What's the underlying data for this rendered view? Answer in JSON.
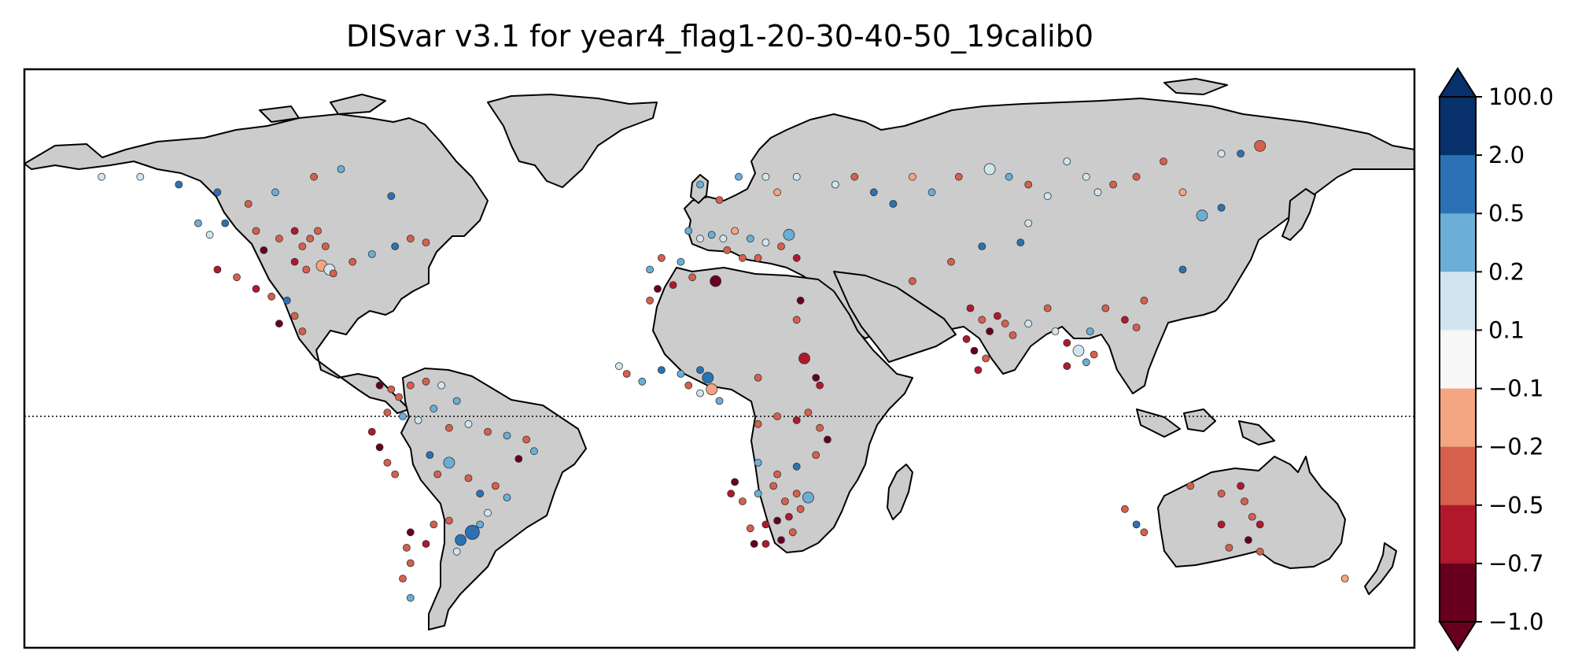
{
  "title": "DISvar v3.1 for year4_flag1-20-30-40-50_19calib0",
  "colorbar": {
    "labels": [
      "100.0",
      "2.0",
      "0.5",
      "0.2",
      "0.1",
      "−0.1",
      "−0.2",
      "−0.5",
      "−0.7",
      "−1.0"
    ],
    "colors": [
      "#67001f",
      "#b2182b",
      "#d6604d",
      "#f4a582",
      "#f7f7f7",
      "#d1e5f0",
      "#6baed6",
      "#2b72b4",
      "#08306b"
    ],
    "extend": "both"
  },
  "map": {
    "land_color": "#cccccc",
    "ocean_color": "#ffffff",
    "equator_line": "dotted",
    "marker_edge_color": "#333333"
  },
  "stations": [
    {
      "lon": -130,
      "lat": 60,
      "v": 0.6,
      "s": 1
    },
    {
      "lon": -140,
      "lat": 62,
      "v": 0.12,
      "s": 1
    },
    {
      "lon": -150,
      "lat": 62,
      "v": 0.12,
      "s": 1
    },
    {
      "lon": -120,
      "lat": 58,
      "v": 1.0,
      "s": 1
    },
    {
      "lon": -112,
      "lat": 55,
      "v": -0.3,
      "s": 1
    },
    {
      "lon": -105,
      "lat": 58,
      "v": 0.4,
      "s": 1
    },
    {
      "lon": -95,
      "lat": 62,
      "v": -0.3,
      "s": 1
    },
    {
      "lon": -88,
      "lat": 64,
      "v": 0.35,
      "s": 1
    },
    {
      "lon": -75,
      "lat": 57,
      "v": 0.5,
      "s": 1
    },
    {
      "lon": -118,
      "lat": 50,
      "v": 0.6,
      "s": 1
    },
    {
      "lon": -110,
      "lat": 48,
      "v": -0.3,
      "s": 1
    },
    {
      "lon": -104,
      "lat": 46,
      "v": -0.3,
      "s": 1
    },
    {
      "lon": -100,
      "lat": 48,
      "v": -0.6,
      "s": 1
    },
    {
      "lon": -98,
      "lat": 44,
      "v": -0.4,
      "s": 1
    },
    {
      "lon": -96,
      "lat": 46,
      "v": -0.3,
      "s": 1
    },
    {
      "lon": -94,
      "lat": 48,
      "v": -0.4,
      "s": 1
    },
    {
      "lon": -92,
      "lat": 44,
      "v": -0.5,
      "s": 1
    },
    {
      "lon": -108,
      "lat": 43,
      "v": -0.8,
      "s": 1
    },
    {
      "lon": -100,
      "lat": 40,
      "v": -0.6,
      "s": 1
    },
    {
      "lon": -97,
      "lat": 38,
      "v": -0.3,
      "s": 1
    },
    {
      "lon": -93,
      "lat": 39,
      "v": -0.15,
      "s": 2
    },
    {
      "lon": -91,
      "lat": 38,
      "v": 0.12,
      "s": 2
    },
    {
      "lon": -90,
      "lat": 37,
      "v": -0.3,
      "s": 1
    },
    {
      "lon": -85,
      "lat": 40,
      "v": -0.3,
      "s": 1
    },
    {
      "lon": -80,
      "lat": 42,
      "v": 0.4,
      "s": 1
    },
    {
      "lon": -74,
      "lat": 44,
      "v": 0.5,
      "s": 1
    },
    {
      "lon": -70,
      "lat": 46,
      "v": -0.4,
      "s": 1
    },
    {
      "lon": -66,
      "lat": 45,
      "v": -0.3,
      "s": 1
    },
    {
      "lon": -120,
      "lat": 38,
      "v": -0.6,
      "s": 1
    },
    {
      "lon": -115,
      "lat": 36,
      "v": -0.3,
      "s": 1
    },
    {
      "lon": -110,
      "lat": 33,
      "v": -0.6,
      "s": 1
    },
    {
      "lon": -106,
      "lat": 31,
      "v": -0.5,
      "s": 1
    },
    {
      "lon": -102,
      "lat": 30,
      "v": 0.6,
      "s": 1
    },
    {
      "lon": -100,
      "lat": 26,
      "v": -0.4,
      "s": 1
    },
    {
      "lon": -104,
      "lat": 24,
      "v": -0.8,
      "s": 1
    },
    {
      "lon": -98,
      "lat": 22,
      "v": -0.3,
      "s": 1
    },
    {
      "lon": -122,
      "lat": 47,
      "v": 0.12,
      "s": 1
    },
    {
      "lon": -125,
      "lat": 50,
      "v": 0.4,
      "s": 1
    },
    {
      "lon": -78,
      "lat": 8,
      "v": -0.8,
      "s": 1
    },
    {
      "lon": -75,
      "lat": 7,
      "v": -0.3,
      "s": 1
    },
    {
      "lon": -73,
      "lat": 5,
      "v": -0.3,
      "s": 1
    },
    {
      "lon": -70,
      "lat": 8,
      "v": -0.5,
      "s": 1
    },
    {
      "lon": -66,
      "lat": 9,
      "v": -0.3,
      "s": 1
    },
    {
      "lon": -62,
      "lat": 8,
      "v": 0.12,
      "s": 1
    },
    {
      "lon": -58,
      "lat": 4,
      "v": 0.3,
      "s": 1
    },
    {
      "lon": -76,
      "lat": 1,
      "v": -0.5,
      "s": 1
    },
    {
      "lon": -72,
      "lat": 0,
      "v": 0.4,
      "s": 1
    },
    {
      "lon": -68,
      "lat": -1,
      "v": 0.12,
      "s": 1
    },
    {
      "lon": -64,
      "lat": 2,
      "v": 0.3,
      "s": 1
    },
    {
      "lon": -60,
      "lat": -3,
      "v": -0.3,
      "s": 1
    },
    {
      "lon": -55,
      "lat": -2,
      "v": 0.12,
      "s": 1
    },
    {
      "lon": -50,
      "lat": -4,
      "v": -0.3,
      "s": 1
    },
    {
      "lon": -45,
      "lat": -5,
      "v": 0.2,
      "s": 1
    },
    {
      "lon": -40,
      "lat": -6,
      "v": -0.3,
      "s": 1
    },
    {
      "lon": -38,
      "lat": -9,
      "v": 0.4,
      "s": 1
    },
    {
      "lon": -42,
      "lat": -11,
      "v": -0.8,
      "s": 1
    },
    {
      "lon": -80,
      "lat": -4,
      "v": -0.6,
      "s": 1
    },
    {
      "lon": -78,
      "lat": -8,
      "v": -0.8,
      "s": 1
    },
    {
      "lon": -76,
      "lat": -12,
      "v": -0.3,
      "s": 1
    },
    {
      "lon": -74,
      "lat": -15,
      "v": -0.5,
      "s": 1
    },
    {
      "lon": -65,
      "lat": -10,
      "v": 0.6,
      "s": 1
    },
    {
      "lon": -60,
      "lat": -12,
      "v": 0.35,
      "s": 2
    },
    {
      "lon": -63,
      "lat": -15,
      "v": -0.3,
      "s": 1
    },
    {
      "lon": -55,
      "lat": -16,
      "v": -0.3,
      "s": 1
    },
    {
      "lon": -52,
      "lat": -20,
      "v": 0.7,
      "s": 1
    },
    {
      "lon": -48,
      "lat": -18,
      "v": -0.5,
      "s": 1
    },
    {
      "lon": -45,
      "lat": -21,
      "v": 0.3,
      "s": 1
    },
    {
      "lon": -50,
      "lat": -25,
      "v": 0.12,
      "s": 1
    },
    {
      "lon": -52,
      "lat": -28,
      "v": 0.4,
      "s": 1
    },
    {
      "lon": -54,
      "lat": -30,
      "v": 1.0,
      "s": 3
    },
    {
      "lon": -57,
      "lat": -32,
      "v": 0.7,
      "s": 2
    },
    {
      "lon": -60,
      "lat": -27,
      "v": -0.5,
      "s": 1
    },
    {
      "lon": -58,
      "lat": -35,
      "v": 0.12,
      "s": 1
    },
    {
      "lon": -64,
      "lat": -28,
      "v": -0.3,
      "s": 1
    },
    {
      "lon": -66,
      "lat": -33,
      "v": -0.6,
      "s": 1
    },
    {
      "lon": -70,
      "lat": -30,
      "v": -0.8,
      "s": 1
    },
    {
      "lon": -71,
      "lat": -34,
      "v": -0.3,
      "s": 1
    },
    {
      "lon": -70,
      "lat": -38,
      "v": -0.5,
      "s": 1
    },
    {
      "lon": -72,
      "lat": -42,
      "v": -0.3,
      "s": 1
    },
    {
      "lon": -70,
      "lat": -47,
      "v": 0.4,
      "s": 1
    },
    {
      "lon": 5,
      "lat": 60,
      "v": 0.4,
      "s": 1
    },
    {
      "lon": 10,
      "lat": 56,
      "v": -0.3,
      "s": 1
    },
    {
      "lon": 15,
      "lat": 62,
      "v": 0.3,
      "s": 1
    },
    {
      "lon": 22,
      "lat": 62,
      "v": 0.12,
      "s": 1
    },
    {
      "lon": 25,
      "lat": 58,
      "v": -0.15,
      "s": 1
    },
    {
      "lon": 30,
      "lat": 62,
      "v": 0.12,
      "s": 1
    },
    {
      "lon": 2,
      "lat": 48,
      "v": 0.3,
      "s": 1
    },
    {
      "lon": 5,
      "lat": 46,
      "v": 0.12,
      "s": 1
    },
    {
      "lon": 8,
      "lat": 47,
      "v": 0.3,
      "s": 1
    },
    {
      "lon": 11,
      "lat": 46,
      "v": 0.12,
      "s": 1
    },
    {
      "lon": 14,
      "lat": 48,
      "v": -0.15,
      "s": 1
    },
    {
      "lon": 18,
      "lat": 46,
      "v": 0.3,
      "s": 1
    },
    {
      "lon": 22,
      "lat": 45,
      "v": 0.12,
      "s": 1
    },
    {
      "lon": 26,
      "lat": 44,
      "v": -0.3,
      "s": 1
    },
    {
      "lon": 28,
      "lat": 47,
      "v": 0.3,
      "s": 2
    },
    {
      "lon": 30,
      "lat": 41,
      "v": -0.6,
      "s": 1
    },
    {
      "lon": 20,
      "lat": 41,
      "v": -0.3,
      "s": 1
    },
    {
      "lon": 16,
      "lat": 41,
      "v": -0.3,
      "s": 1
    },
    {
      "lon": 12,
      "lat": 43,
      "v": -0.5,
      "s": 1
    },
    {
      "lon": 0,
      "lat": 40,
      "v": 0.3,
      "s": 1
    },
    {
      "lon": -5,
      "lat": 41,
      "v": -0.3,
      "s": 1
    },
    {
      "lon": -8,
      "lat": 38,
      "v": 0.4,
      "s": 1
    },
    {
      "lon": -6,
      "lat": 33,
      "v": -0.8,
      "s": 1
    },
    {
      "lon": -2,
      "lat": 34,
      "v": -0.6,
      "s": 1
    },
    {
      "lon": -8,
      "lat": 30,
      "v": -0.5,
      "s": 1
    },
    {
      "lon": 3,
      "lat": 36,
      "v": -0.3,
      "s": 1
    },
    {
      "lon": 9,
      "lat": 35,
      "v": -0.8,
      "s": 2
    },
    {
      "lon": 31,
      "lat": 30,
      "v": -0.8,
      "s": 1
    },
    {
      "lon": 30,
      "lat": 25,
      "v": -0.5,
      "s": 1
    },
    {
      "lon": 32,
      "lat": 15,
      "v": -0.6,
      "s": 2
    },
    {
      "lon": 35,
      "lat": 10,
      "v": -0.8,
      "s": 1
    },
    {
      "lon": 36,
      "lat": 8,
      "v": -0.6,
      "s": 1
    },
    {
      "lon": -16,
      "lat": 13,
      "v": 0.12,
      "s": 1
    },
    {
      "lon": -14,
      "lat": 11,
      "v": -0.3,
      "s": 1
    },
    {
      "lon": -10,
      "lat": 9,
      "v": 0.35,
      "s": 1
    },
    {
      "lon": -5,
      "lat": 12,
      "v": 0.5,
      "s": 1
    },
    {
      "lon": 0,
      "lat": 11,
      "v": 0.3,
      "s": 1
    },
    {
      "lon": 2,
      "lat": 8,
      "v": -0.3,
      "s": 1
    },
    {
      "lon": 5,
      "lat": 12,
      "v": 0.7,
      "s": 1
    },
    {
      "lon": 7,
      "lat": 10,
      "v": 1.0,
      "s": 2
    },
    {
      "lon": 8,
      "lat": 7,
      "v": -0.15,
      "s": 2
    },
    {
      "lon": 5,
      "lat": 6,
      "v": 0.12,
      "s": 1
    },
    {
      "lon": 20,
      "lat": 10,
      "v": -0.3,
      "s": 1
    },
    {
      "lon": 10,
      "lat": 4,
      "v": 0.4,
      "s": 1
    },
    {
      "lon": 20,
      "lat": -2,
      "v": -0.5,
      "s": 1
    },
    {
      "lon": 25,
      "lat": 0,
      "v": -0.3,
      "s": 1
    },
    {
      "lon": 30,
      "lat": -1,
      "v": -0.6,
      "s": 1
    },
    {
      "lon": 33,
      "lat": 1,
      "v": -0.3,
      "s": 1
    },
    {
      "lon": 36,
      "lat": -3,
      "v": -0.5,
      "s": 1
    },
    {
      "lon": 38,
      "lat": -6,
      "v": -0.8,
      "s": 1
    },
    {
      "lon": 35,
      "lat": -10,
      "v": -0.3,
      "s": 1
    },
    {
      "lon": 30,
      "lat": -13,
      "v": 0.5,
      "s": 1
    },
    {
      "lon": 25,
      "lat": -15,
      "v": -0.5,
      "s": 1
    },
    {
      "lon": 20,
      "lat": -12,
      "v": 0.4,
      "s": 1
    },
    {
      "lon": 14,
      "lat": -17,
      "v": -0.8,
      "s": 1
    },
    {
      "lon": 13,
      "lat": -20,
      "v": -0.6,
      "s": 1
    },
    {
      "lon": 16,
      "lat": -22,
      "v": -0.5,
      "s": 1
    },
    {
      "lon": 20,
      "lat": -20,
      "v": 0.3,
      "s": 1
    },
    {
      "lon": 24,
      "lat": -18,
      "v": -0.3,
      "s": 1
    },
    {
      "lon": 27,
      "lat": -22,
      "v": -0.5,
      "s": 1
    },
    {
      "lon": 30,
      "lat": -20,
      "v": -0.3,
      "s": 1
    },
    {
      "lon": 33,
      "lat": -21,
      "v": 0.3,
      "s": 2
    },
    {
      "lon": 31,
      "lat": -24,
      "v": -0.5,
      "s": 1
    },
    {
      "lon": 28,
      "lat": -26,
      "v": -0.6,
      "s": 1
    },
    {
      "lon": 25,
      "lat": -27,
      "v": -0.8,
      "s": 1
    },
    {
      "lon": 22,
      "lat": -28,
      "v": -0.6,
      "s": 1
    },
    {
      "lon": 18,
      "lat": -29,
      "v": -0.5,
      "s": 1
    },
    {
      "lon": 19,
      "lat": -33,
      "v": -0.8,
      "s": 1
    },
    {
      "lon": 22,
      "lat": -33,
      "v": -0.6,
      "s": 1
    },
    {
      "lon": 26,
      "lat": -32,
      "v": -0.8,
      "s": 1
    },
    {
      "lon": 29,
      "lat": -30,
      "v": -0.5,
      "s": 1
    },
    {
      "lon": 40,
      "lat": 60,
      "v": 0.12,
      "s": 1
    },
    {
      "lon": 45,
      "lat": 62,
      "v": -0.3,
      "s": 1
    },
    {
      "lon": 50,
      "lat": 58,
      "v": 0.5,
      "s": 1
    },
    {
      "lon": 55,
      "lat": 55,
      "v": 0.7,
      "s": 1
    },
    {
      "lon": 60,
      "lat": 62,
      "v": -0.15,
      "s": 1
    },
    {
      "lon": 65,
      "lat": 58,
      "v": 0.3,
      "s": 1
    },
    {
      "lon": 72,
      "lat": 62,
      "v": -0.3,
      "s": 1
    },
    {
      "lon": 80,
      "lat": 64,
      "v": 0.12,
      "s": 2
    },
    {
      "lon": 85,
      "lat": 62,
      "v": 0.3,
      "s": 1
    },
    {
      "lon": 90,
      "lat": 60,
      "v": -0.3,
      "s": 1
    },
    {
      "lon": 95,
      "lat": 57,
      "v": 0.12,
      "s": 1
    },
    {
      "lon": 100,
      "lat": 66,
      "v": 0.12,
      "s": 1
    },
    {
      "lon": 105,
      "lat": 62,
      "v": 0.12,
      "s": 1
    },
    {
      "lon": 108,
      "lat": 58,
      "v": 0.12,
      "s": 1
    },
    {
      "lon": 112,
      "lat": 60,
      "v": -0.3,
      "s": 1
    },
    {
      "lon": 118,
      "lat": 62,
      "v": -0.3,
      "s": 1
    },
    {
      "lon": 125,
      "lat": 66,
      "v": -0.3,
      "s": 1
    },
    {
      "lon": 130,
      "lat": 58,
      "v": -0.15,
      "s": 1
    },
    {
      "lon": 135,
      "lat": 52,
      "v": 0.3,
      "s": 2
    },
    {
      "lon": 140,
      "lat": 54,
      "v": 0.5,
      "s": 1
    },
    {
      "lon": 150,
      "lat": 70,
      "v": -0.3,
      "s": 2
    },
    {
      "lon": 140,
      "lat": 68,
      "v": 0.12,
      "s": 1
    },
    {
      "lon": 145,
      "lat": 68,
      "v": 0.5,
      "s": 1
    },
    {
      "lon": 90,
      "lat": 50,
      "v": 0.12,
      "s": 1
    },
    {
      "lon": 88,
      "lat": 45,
      "v": 0.5,
      "s": 1
    },
    {
      "lon": 78,
      "lat": 44,
      "v": 0.5,
      "s": 1
    },
    {
      "lon": 70,
      "lat": 40,
      "v": -0.3,
      "s": 1
    },
    {
      "lon": 60,
      "lat": 35,
      "v": -0.3,
      "s": 1
    },
    {
      "lon": 75,
      "lat": 28,
      "v": -0.6,
      "s": 1
    },
    {
      "lon": 78,
      "lat": 25,
      "v": -0.5,
      "s": 1
    },
    {
      "lon": 80,
      "lat": 22,
      "v": -0.8,
      "s": 1
    },
    {
      "lon": 82,
      "lat": 26,
      "v": -0.6,
      "s": 1
    },
    {
      "lon": 84,
      "lat": 24,
      "v": -0.5,
      "s": 1
    },
    {
      "lon": 74,
      "lat": 20,
      "v": -0.6,
      "s": 1
    },
    {
      "lon": 76,
      "lat": 17,
      "v": -0.8,
      "s": 1
    },
    {
      "lon": 79,
      "lat": 15,
      "v": -0.5,
      "s": 1
    },
    {
      "lon": 77,
      "lat": 12,
      "v": -0.6,
      "s": 1
    },
    {
      "lon": 86,
      "lat": 21,
      "v": -0.3,
      "s": 1
    },
    {
      "lon": 90,
      "lat": 24,
      "v": 0.12,
      "s": 1
    },
    {
      "lon": 95,
      "lat": 28,
      "v": -0.3,
      "s": 1
    },
    {
      "lon": 97,
      "lat": 22,
      "v": 0.12,
      "s": 1
    },
    {
      "lon": 100,
      "lat": 19,
      "v": -0.6,
      "s": 1
    },
    {
      "lon": 103,
      "lat": 17,
      "v": 0.12,
      "s": 2
    },
    {
      "lon": 105,
      "lat": 14,
      "v": 0.3,
      "s": 1
    },
    {
      "lon": 107,
      "lat": 16,
      "v": -0.3,
      "s": 1
    },
    {
      "lon": 100,
      "lat": 13,
      "v": -0.6,
      "s": 1
    },
    {
      "lon": 106,
      "lat": 22,
      "v": 0.3,
      "s": 1
    },
    {
      "lon": 110,
      "lat": 28,
      "v": -0.3,
      "s": 1
    },
    {
      "lon": 115,
      "lat": 25,
      "v": -0.6,
      "s": 1
    },
    {
      "lon": 120,
      "lat": 30,
      "v": -0.3,
      "s": 1
    },
    {
      "lon": 118,
      "lat": 23,
      "v": -0.3,
      "s": 1
    },
    {
      "lon": 130,
      "lat": 38,
      "v": 0.5,
      "s": 1
    },
    {
      "lon": 115,
      "lat": -24,
      "v": -0.3,
      "s": 1
    },
    {
      "lon": 118,
      "lat": -28,
      "v": 0.5,
      "s": 1
    },
    {
      "lon": 120,
      "lat": -30,
      "v": -0.3,
      "s": 1
    },
    {
      "lon": 132,
      "lat": -18,
      "v": -0.3,
      "s": 1
    },
    {
      "lon": 140,
      "lat": -20,
      "v": -0.3,
      "s": 1
    },
    {
      "lon": 145,
      "lat": -18,
      "v": -0.6,
      "s": 1
    },
    {
      "lon": 146,
      "lat": -22,
      "v": -0.3,
      "s": 1
    },
    {
      "lon": 148,
      "lat": -26,
      "v": -0.5,
      "s": 1
    },
    {
      "lon": 150,
      "lat": -28,
      "v": -0.6,
      "s": 1
    },
    {
      "lon": 147,
      "lat": -32,
      "v": -0.8,
      "s": 1
    },
    {
      "lon": 142,
      "lat": -34,
      "v": -0.3,
      "s": 1
    },
    {
      "lon": 140,
      "lat": -28,
      "v": -0.6,
      "s": 1
    },
    {
      "lon": 150,
      "lat": -35,
      "v": -0.5,
      "s": 1
    },
    {
      "lon": 172,
      "lat": -42,
      "v": -0.15,
      "s": 1
    }
  ]
}
